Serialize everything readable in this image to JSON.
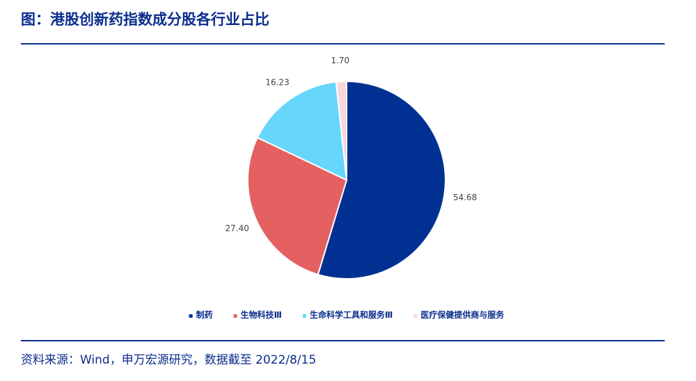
{
  "title": "图：港股创新药指数成分股各行业占比",
  "source": "资料来源：Wind，申万宏源研究，数据截至 2022/8/15",
  "chart_data": {
    "type": "pie",
    "start_angle_deg": 0,
    "direction": "clockwise",
    "legend_position": "bottom",
    "slices": [
      {
        "label": "制药",
        "value": 54.68,
        "display": "54.68",
        "color": "#003192"
      },
      {
        "label": "生物科技Ⅲ",
        "value": 27.4,
        "display": "27.40",
        "color": "#e56060"
      },
      {
        "label": "生命科学工具和服务Ⅲ",
        "value": 16.23,
        "display": "16.23",
        "color": "#66d6fb"
      },
      {
        "label": "医疗保健提供商与服务",
        "value": 1.7,
        "display": "1.70",
        "color": "#f9d6dd"
      }
    ]
  }
}
